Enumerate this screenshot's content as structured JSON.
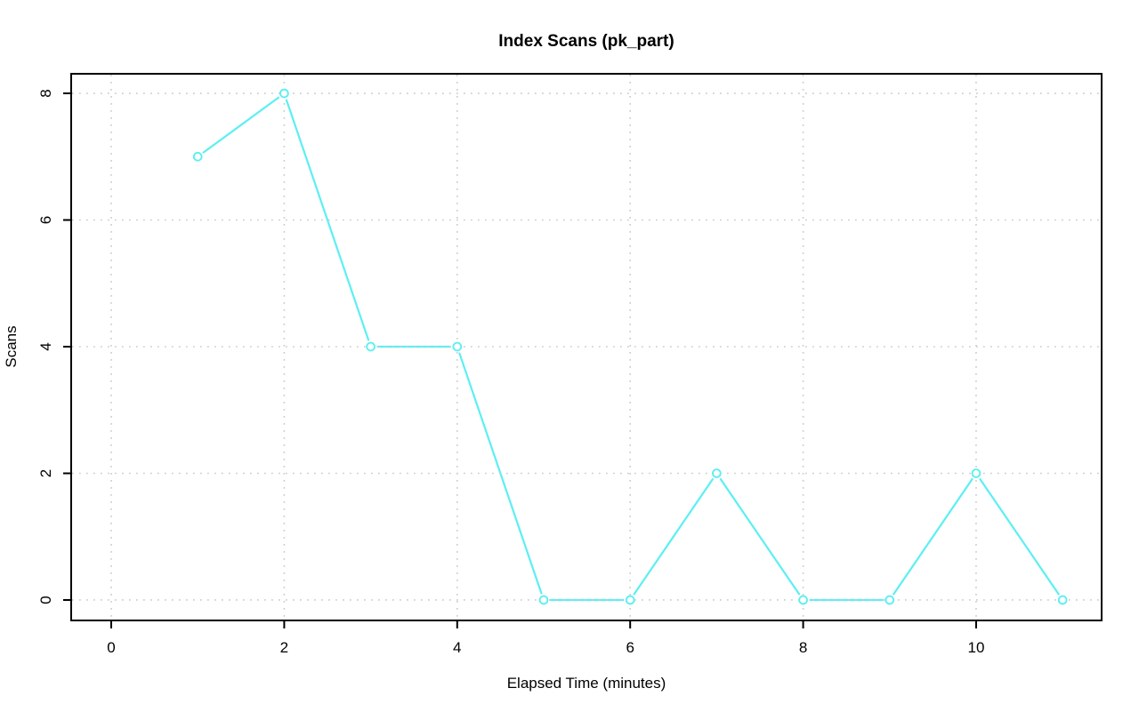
{
  "chart_data": {
    "type": "line",
    "title": "Index Scans (pk_part)",
    "xlabel": "Elapsed Time (minutes)",
    "ylabel": "Scans",
    "x": [
      1,
      2,
      3,
      4,
      5,
      6,
      7,
      8,
      9,
      10,
      11
    ],
    "y": [
      7,
      8,
      4,
      4,
      0,
      0,
      2,
      0,
      0,
      2,
      0
    ],
    "x_ticks": [
      0,
      2,
      4,
      6,
      8,
      10
    ],
    "y_ticks": [
      0,
      2,
      4,
      6,
      8
    ],
    "xlim": [
      -0.463,
      11.451
    ],
    "ylim": [
      -0.323,
      8.309
    ],
    "grid": true,
    "grid_style": "dotted",
    "legend_position": "none",
    "marker": "open-circle",
    "line_type": "b-segments-with-gaps",
    "colors": {
      "series": "#5CEFF2",
      "marker_fill": "#FFFFFF",
      "grid": "#CBCBCB",
      "axis": "#000000",
      "background": "#FFFFFF",
      "text": "#000000"
    }
  }
}
